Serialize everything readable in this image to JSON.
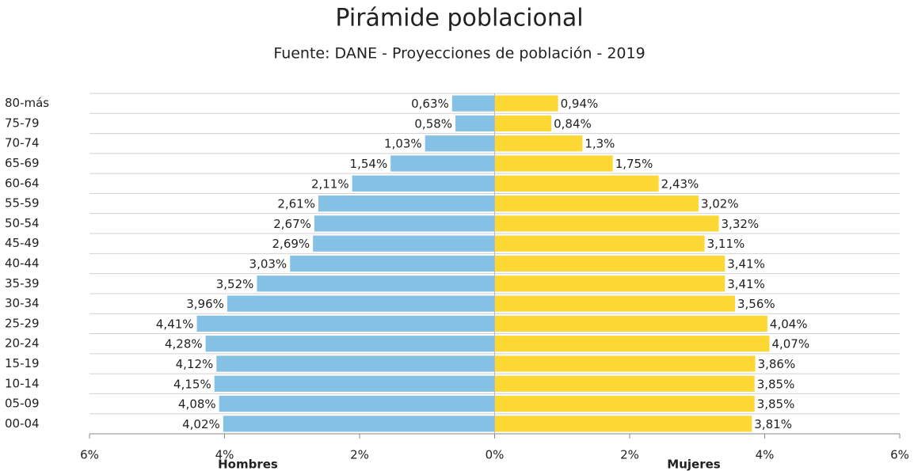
{
  "chart_data": {
    "type": "pyramid",
    "title": "Pirámide poblacional",
    "subtitle": "Fuente: DANE - Proyecciones de población - 2019",
    "categories": [
      "80-más",
      "75-79",
      "70-74",
      "65-69",
      "60-64",
      "55-59",
      "50-54",
      "45-49",
      "40-44",
      "35-39",
      "30-34",
      "25-29",
      "20-24",
      "15-19",
      "10-14",
      "05-09",
      "00-04"
    ],
    "series": [
      {
        "name": "Hombres",
        "color": "#85c1e5",
        "values": [
          0.63,
          0.58,
          1.03,
          1.54,
          2.11,
          2.61,
          2.67,
          2.69,
          3.03,
          3.52,
          3.96,
          4.41,
          4.28,
          4.12,
          4.15,
          4.08,
          4.02
        ],
        "value_labels": [
          "0,63%",
          "0,58%",
          "1,03%",
          "1,54%",
          "2,11%",
          "2,61%",
          "2,67%",
          "2,69%",
          "3,03%",
          "3,52%",
          "3,96%",
          "4,41%",
          "4,28%",
          "4,12%",
          "4,15%",
          "4,08%",
          "4,02%"
        ]
      },
      {
        "name": "Mujeres",
        "color": "#fdd835",
        "values": [
          0.94,
          0.84,
          1.3,
          1.75,
          2.43,
          3.02,
          3.32,
          3.11,
          3.41,
          3.41,
          3.56,
          4.04,
          4.07,
          3.86,
          3.85,
          3.85,
          3.81
        ],
        "value_labels": [
          "0,94%",
          "0,84%",
          "1,3%",
          "1,75%",
          "2,43%",
          "3,02%",
          "3,32%",
          "3,11%",
          "3,41%",
          "3,41%",
          "3,56%",
          "4,04%",
          "4,07%",
          "3,86%",
          "3,85%",
          "3,85%",
          "3,81%"
        ]
      }
    ],
    "xlim": [
      -6,
      6
    ],
    "xticks": [
      {
        "value": -6,
        "label": "6%"
      },
      {
        "value": -4,
        "label": "4%"
      },
      {
        "value": -2,
        "label": "2%"
      },
      {
        "value": 0,
        "label": "0%"
      },
      {
        "value": 2,
        "label": "2%"
      },
      {
        "value": 4,
        "label": "4%"
      },
      {
        "value": 6,
        "label": "6%"
      }
    ],
    "grid": true
  }
}
